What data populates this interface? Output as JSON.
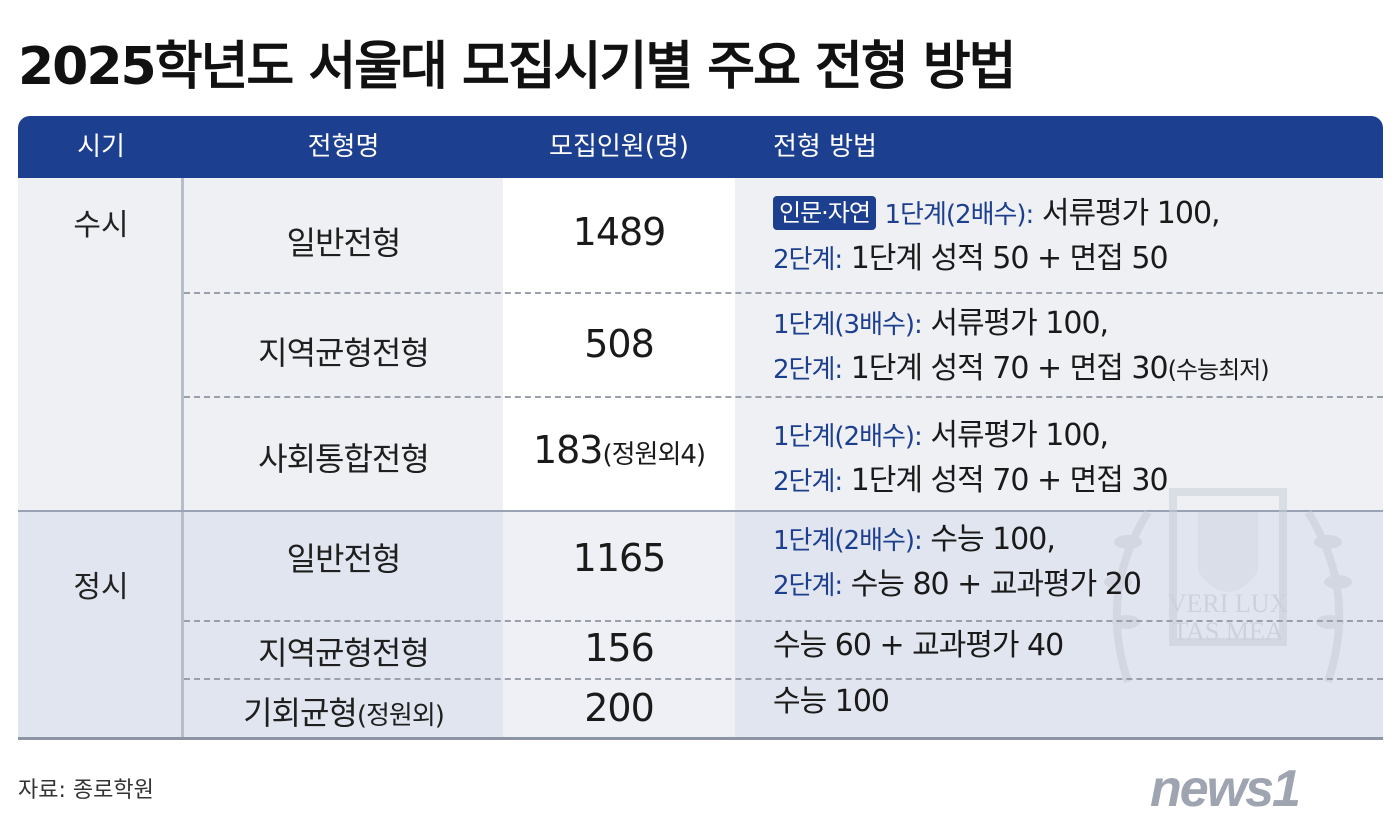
{
  "title": "2025학년도 서울대 모집시기별 주요 전형 방법",
  "headers": {
    "period": "시기",
    "name": "전형명",
    "count": "모집인원(명)",
    "method": "전형 방법"
  },
  "susi": {
    "period": "수시",
    "rows": [
      {
        "name": "일반전형",
        "count": "1489",
        "tag": "인문·자연",
        "line1_label": "1단계(2배수):",
        "line1_value": "서류평가 100,",
        "line2_label": "2단계:",
        "line2_value": "1단계 성적 50 + 면접 50"
      },
      {
        "name": "지역균형전형",
        "count": "508",
        "line1_label": "1단계(3배수):",
        "line1_value": "서류평가 100,",
        "line2_label": "2단계:",
        "line2_value": "1단계 성적 70 + 면접 30",
        "line2_note": "(수능최저)"
      },
      {
        "name": "사회통합전형",
        "count": "183",
        "count_note": "(정원외4)",
        "line1_label": "1단계(2배수):",
        "line1_value": "서류평가 100,",
        "line2_label": "2단계:",
        "line2_value": "1단계 성적 70 + 면접 30"
      }
    ]
  },
  "jeongsi": {
    "period": "정시",
    "rows": [
      {
        "name": "일반전형",
        "count": "1165",
        "line1_label": "1단계(2배수):",
        "line1_value": "수능 100,",
        "line2_label": "2단계:",
        "line2_value": "수능 80 + 교과평가 20"
      },
      {
        "name": "지역균형전형",
        "count": "156",
        "method": "수능 60 + 교과평가 40"
      },
      {
        "name": "기회균형",
        "name_note": "(정원외)",
        "count": "200",
        "method": "수능 100"
      }
    ]
  },
  "emblem_text": {
    "line1": "VERI LUX",
    "line2": "TAS MEA"
  },
  "source": "자료: 종로학원",
  "logo_text": "news1",
  "colors": {
    "header_bg": "#1d3f8f",
    "accent_text": "#1d3f8f",
    "susi_bg": "#eef0f4",
    "jeongsi_bg": "#e1e5ef"
  }
}
